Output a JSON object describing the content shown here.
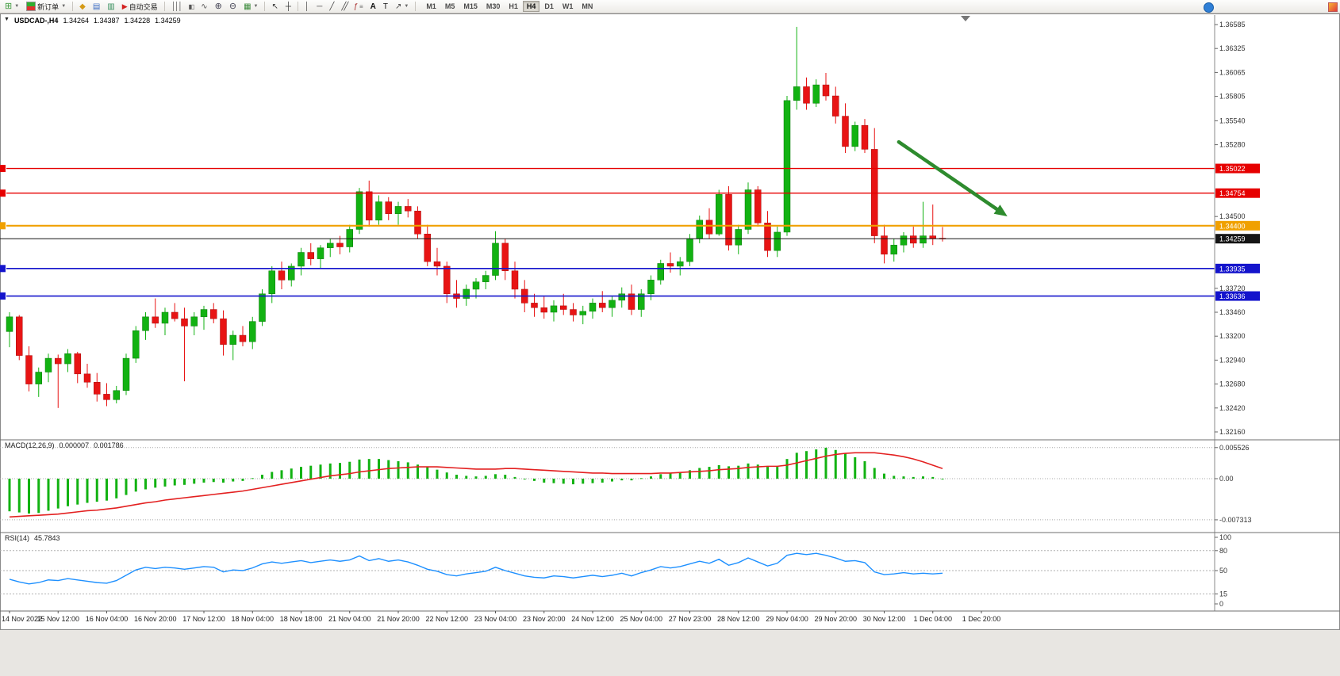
{
  "toolbar": {
    "new_order_label": "新订单",
    "auto_trading_label": "自动交易",
    "timeframes": [
      "M1",
      "M5",
      "M15",
      "M30",
      "H1",
      "H4",
      "D1",
      "W1",
      "MN"
    ],
    "active_timeframe": "H4"
  },
  "chart_header": {
    "symbol_tf": "USDCAD-,H4",
    "open": "1.34264",
    "high": "1.34387",
    "low": "1.34228",
    "close": "1.34259"
  },
  "chart_data": [
    {
      "type": "candlestick",
      "title": "USDCAD- H4",
      "colors": {
        "bull": "#12b212",
        "bear": "#e81414"
      },
      "y_ticks": [
        {
          "label": "1.36585",
          "value": 1.36585
        },
        {
          "label": "1.36325",
          "value": 1.36325
        },
        {
          "label": "1.36065",
          "value": 1.36065
        },
        {
          "label": "1.35805",
          "value": 1.35805
        },
        {
          "label": "1.35540",
          "value": 1.3554
        },
        {
          "label": "1.35280",
          "value": 1.3528
        },
        {
          "label": "1.34500",
          "value": 1.345
        },
        {
          "label": "1.33720",
          "value": 1.3372
        },
        {
          "label": "1.33460",
          "value": 1.3346
        },
        {
          "label": "1.33200",
          "value": 1.332
        },
        {
          "label": "1.32940",
          "value": 1.3294
        },
        {
          "label": "1.32680",
          "value": 1.3268
        },
        {
          "label": "1.32420",
          "value": 1.3242
        },
        {
          "label": "1.32160",
          "value": 1.3216
        }
      ],
      "hlines": [
        {
          "label": "1.35022",
          "price": 1.35022,
          "color": "#e60000",
          "width": 1.4
        },
        {
          "label": "1.34754",
          "price": 1.34754,
          "color": "#e60000",
          "width": 1.4
        },
        {
          "label": "1.34400",
          "price": 1.344,
          "color": "#f0a000",
          "width": 2.2
        },
        {
          "label": "1.33935",
          "price": 1.33935,
          "color": "#1414cc",
          "width": 1.6
        },
        {
          "label": "1.33636",
          "price": 1.33636,
          "color": "#1414cc",
          "width": 1.6
        }
      ],
      "current_price": {
        "label": "1.34259",
        "value": 1.34259,
        "color": "#151515"
      },
      "annotations": [
        {
          "type": "arrow",
          "from": {
            "index": 91.5,
            "price": 1.3531
          },
          "to": {
            "index": 102,
            "price": 1.3455
          },
          "color": "#2e8b2e",
          "width": 4.5
        }
      ],
      "x_labels": [
        "14 Nov 2022",
        "15 Nov 12:00",
        "16 Nov 04:00",
        "16 Nov 20:00",
        "17 Nov 12:00",
        "18 Nov 04:00",
        "18 Nov 18:00",
        "21 Nov 04:00",
        "21 Nov 20:00",
        "22 Nov 12:00",
        "23 Nov 04:00",
        "23 Nov 20:00",
        "24 Nov 12:00",
        "25 Nov 04:00",
        "27 Nov 23:00",
        "28 Nov 12:00",
        "29 Nov 04:00",
        "29 Nov 20:00",
        "30 Nov 12:00",
        "1 Dec 04:00",
        "1 Dec 20:00"
      ],
      "candles": [
        [
          1.3325,
          1.3346,
          1.3308,
          1.3341
        ],
        [
          1.3341,
          1.3343,
          1.3294,
          1.3299
        ],
        [
          1.3299,
          1.3309,
          1.326,
          1.3268
        ],
        [
          1.3268,
          1.3286,
          1.3254,
          1.3281
        ],
        [
          1.3281,
          1.3301,
          1.327,
          1.3296
        ],
        [
          1.3296,
          1.33,
          1.3242,
          1.329
        ],
        [
          1.329,
          1.3306,
          1.3281,
          1.3301
        ],
        [
          1.3301,
          1.3303,
          1.3269,
          1.3279
        ],
        [
          1.3279,
          1.329,
          1.3264,
          1.327
        ],
        [
          1.327,
          1.328,
          1.3249,
          1.3257
        ],
        [
          1.3257,
          1.3269,
          1.3244,
          1.3251
        ],
        [
          1.3251,
          1.3266,
          1.3247,
          1.3261
        ],
        [
          1.3261,
          1.3301,
          1.3256,
          1.3296
        ],
        [
          1.3296,
          1.3331,
          1.3291,
          1.3326
        ],
        [
          1.3326,
          1.3346,
          1.3316,
          1.3341
        ],
        [
          1.3341,
          1.3361,
          1.3329,
          1.3334
        ],
        [
          1.3334,
          1.3351,
          1.3321,
          1.3346
        ],
        [
          1.3346,
          1.3356,
          1.3336,
          1.3339
        ],
        [
          1.3339,
          1.3351,
          1.3271,
          1.3331
        ],
        [
          1.3331,
          1.3346,
          1.3321,
          1.3341
        ],
        [
          1.3341,
          1.3353,
          1.3327,
          1.3349
        ],
        [
          1.3349,
          1.3356,
          1.3334,
          1.3339
        ],
        [
          1.3339,
          1.3348,
          1.3299,
          1.3311
        ],
        [
          1.3311,
          1.3326,
          1.3294,
          1.3321
        ],
        [
          1.3321,
          1.3331,
          1.3309,
          1.3314
        ],
        [
          1.3314,
          1.3341,
          1.3306,
          1.3336
        ],
        [
          1.3336,
          1.3371,
          1.3331,
          1.3366
        ],
        [
          1.3366,
          1.3396,
          1.3356,
          1.3391
        ],
        [
          1.3391,
          1.3401,
          1.3371,
          1.3381
        ],
        [
          1.3381,
          1.3399,
          1.3374,
          1.3396
        ],
        [
          1.3396,
          1.3416,
          1.3386,
          1.3411
        ],
        [
          1.3411,
          1.3421,
          1.3397,
          1.3404
        ],
        [
          1.3404,
          1.3419,
          1.3394,
          1.3416
        ],
        [
          1.3416,
          1.3426,
          1.3406,
          1.3421
        ],
        [
          1.3421,
          1.3429,
          1.3409,
          1.3417
        ],
        [
          1.3417,
          1.3441,
          1.3411,
          1.3436
        ],
        [
          1.3436,
          1.3481,
          1.3431,
          1.3477
        ],
        [
          1.3477,
          1.3489,
          1.3439,
          1.3446
        ],
        [
          1.3446,
          1.3473,
          1.3441,
          1.3466
        ],
        [
          1.3466,
          1.3471,
          1.3446,
          1.3453
        ],
        [
          1.3453,
          1.3466,
          1.3441,
          1.3461
        ],
        [
          1.3461,
          1.3469,
          1.3449,
          1.3456
        ],
        [
          1.3456,
          1.3461,
          1.3426,
          1.3431
        ],
        [
          1.3431,
          1.3441,
          1.3396,
          1.3401
        ],
        [
          1.3401,
          1.3416,
          1.3386,
          1.3396
        ],
        [
          1.3396,
          1.3401,
          1.3356,
          1.3366
        ],
        [
          1.3366,
          1.3381,
          1.3351,
          1.3361
        ],
        [
          1.3361,
          1.3376,
          1.3353,
          1.3371
        ],
        [
          1.3371,
          1.3383,
          1.3361,
          1.3379
        ],
        [
          1.3379,
          1.3391,
          1.3371,
          1.3386
        ],
        [
          1.3386,
          1.3434,
          1.3381,
          1.3421
        ],
        [
          1.3421,
          1.3426,
          1.3381,
          1.3391
        ],
        [
          1.3391,
          1.3401,
          1.3361,
          1.3371
        ],
        [
          1.3371,
          1.3381,
          1.3346,
          1.3356
        ],
        [
          1.3356,
          1.3366,
          1.3341,
          1.3351
        ],
        [
          1.3351,
          1.3363,
          1.3339,
          1.3346
        ],
        [
          1.3346,
          1.3359,
          1.3336,
          1.3353
        ],
        [
          1.3353,
          1.3366,
          1.3343,
          1.3349
        ],
        [
          1.3349,
          1.3356,
          1.3336,
          1.3343
        ],
        [
          1.3343,
          1.3353,
          1.3333,
          1.3347
        ],
        [
          1.3347,
          1.3361,
          1.3339,
          1.3356
        ],
        [
          1.3356,
          1.3369,
          1.3346,
          1.3351
        ],
        [
          1.3351,
          1.3363,
          1.3341,
          1.3359
        ],
        [
          1.3359,
          1.3373,
          1.3351,
          1.3366
        ],
        [
          1.3366,
          1.3376,
          1.3343,
          1.3349
        ],
        [
          1.3349,
          1.3371,
          1.3341,
          1.3366
        ],
        [
          1.3366,
          1.3386,
          1.3359,
          1.3381
        ],
        [
          1.3381,
          1.3403,
          1.3376,
          1.3399
        ],
        [
          1.3399,
          1.3411,
          1.3389,
          1.3396
        ],
        [
          1.3396,
          1.3406,
          1.3386,
          1.3401
        ],
        [
          1.3401,
          1.3431,
          1.3396,
          1.3426
        ],
        [
          1.3426,
          1.3451,
          1.3421,
          1.3446
        ],
        [
          1.3446,
          1.3459,
          1.3426,
          1.3431
        ],
        [
          1.3431,
          1.3479,
          1.3429,
          1.3474
        ],
        [
          1.3474,
          1.3483,
          1.3413,
          1.3419
        ],
        [
          1.3419,
          1.3441,
          1.3409,
          1.3436
        ],
        [
          1.3436,
          1.3487,
          1.3431,
          1.3479
        ],
        [
          1.3479,
          1.3483,
          1.3439,
          1.3443
        ],
        [
          1.3443,
          1.3456,
          1.3406,
          1.3413
        ],
        [
          1.3413,
          1.3439,
          1.3406,
          1.3433
        ],
        [
          1.3433,
          1.3581,
          1.3429,
          1.3576
        ],
        [
          1.3576,
          1.3656,
          1.3566,
          1.3591
        ],
        [
          1.3591,
          1.3601,
          1.3566,
          1.3573
        ],
        [
          1.3573,
          1.3599,
          1.3569,
          1.3593
        ],
        [
          1.3593,
          1.3606,
          1.3576,
          1.3581
        ],
        [
          1.3581,
          1.3591,
          1.3551,
          1.3559
        ],
        [
          1.3559,
          1.3573,
          1.3519,
          1.3526
        ],
        [
          1.3526,
          1.3553,
          1.3521,
          1.3549
        ],
        [
          1.3549,
          1.3556,
          1.3519,
          1.3523
        ],
        [
          1.3523,
          1.3546,
          1.3421,
          1.3429
        ],
        [
          1.3429,
          1.3441,
          1.3399,
          1.3409
        ],
        [
          1.3409,
          1.3426,
          1.3401,
          1.3419
        ],
        [
          1.3419,
          1.3433,
          1.3411,
          1.3429
        ],
        [
          1.3429,
          1.3439,
          1.3416,
          1.3421
        ],
        [
          1.3421,
          1.3466,
          1.3416,
          1.3429
        ],
        [
          1.3429,
          1.3463,
          1.3419,
          1.3426
        ],
        [
          1.34264,
          1.34387,
          1.34228,
          1.34259
        ]
      ]
    },
    {
      "type": "bar",
      "name": "MACD(12,26,9)",
      "value_main": "0.000007",
      "value_signal": "0.001786",
      "bar_color": "#12b212",
      "signal_color": "#e32020",
      "y_ticks": [
        {
          "label": "0.005526",
          "value": 0.005526
        },
        {
          "label": "0.00",
          "value": 0
        },
        {
          "label": "-0.007313",
          "value": -0.007313
        }
      ],
      "histogram": [
        -0.0058,
        -0.006,
        -0.0062,
        -0.0061,
        -0.0057,
        -0.0053,
        -0.0049,
        -0.0046,
        -0.0043,
        -0.0041,
        -0.0039,
        -0.0035,
        -0.0029,
        -0.0023,
        -0.0019,
        -0.0016,
        -0.0014,
        -0.0012,
        -0.0011,
        -0.0009,
        -0.0007,
        -0.0006,
        -0.0007,
        -0.0005,
        -0.0004,
        0.0001,
        0.0007,
        0.0012,
        0.0015,
        0.0018,
        0.0021,
        0.0023,
        0.0025,
        0.0027,
        0.0028,
        0.003,
        0.0034,
        0.0035,
        0.0035,
        0.0033,
        0.0031,
        0.0029,
        0.0025,
        0.0021,
        0.0016,
        0.0011,
        0.0007,
        0.0005,
        0.0004,
        0.0005,
        0.0008,
        0.0007,
        0.0003,
        -0.0001,
        -0.0004,
        -0.0007,
        -0.0008,
        -0.0009,
        -0.001,
        -0.0009,
        -0.0008,
        -0.0007,
        -0.0005,
        -0.0003,
        -0.0003,
        0.0001,
        0.0004,
        0.0008,
        0.001,
        0.0012,
        0.0015,
        0.0019,
        0.0021,
        0.0024,
        0.0022,
        0.0023,
        0.0027,
        0.0025,
        0.0021,
        0.0021,
        0.0035,
        0.0046,
        0.0049,
        0.0052,
        0.0055,
        0.0051,
        0.0045,
        0.0038,
        0.0031,
        0.0019,
        0.0009,
        0.0005,
        0.0004,
        0.0003,
        0.0004,
        0.0003,
        0.0
      ],
      "signal": [
        -0.0068,
        -0.0067,
        -0.0066,
        -0.0065,
        -0.0064,
        -0.0063,
        -0.0061,
        -0.0059,
        -0.0057,
        -0.0056,
        -0.0054,
        -0.0052,
        -0.0049,
        -0.0046,
        -0.0043,
        -0.0041,
        -0.0038,
        -0.0036,
        -0.0034,
        -0.0032,
        -0.003,
        -0.0028,
        -0.0026,
        -0.0024,
        -0.0022,
        -0.0019,
        -0.0016,
        -0.0013,
        -0.001,
        -0.0007,
        -0.0004,
        -0.0001,
        0.0002,
        0.0005,
        0.0007,
        0.0009,
        0.0012,
        0.0014,
        0.0016,
        0.0018,
        0.0019,
        0.002,
        0.0021,
        0.0021,
        0.0021,
        0.002,
        0.0019,
        0.0018,
        0.0017,
        0.0017,
        0.0017,
        0.0018,
        0.0018,
        0.0017,
        0.0016,
        0.0015,
        0.0014,
        0.0013,
        0.0012,
        0.0011,
        0.001,
        0.001,
        0.0009,
        0.0009,
        0.0009,
        0.0009,
        0.0009,
        0.001,
        0.001,
        0.0011,
        0.0012,
        0.0013,
        0.0014,
        0.0016,
        0.0017,
        0.0018,
        0.002,
        0.0021,
        0.0022,
        0.0022,
        0.0024,
        0.0028,
        0.0032,
        0.0036,
        0.004,
        0.0043,
        0.0045,
        0.0046,
        0.0046,
        0.0046,
        0.0044,
        0.0042,
        0.0039,
        0.0035,
        0.003,
        0.0024,
        0.0018
      ]
    },
    {
      "type": "line",
      "name": "RSI(14)",
      "value": "45.7843",
      "line_color": "#1E90FF",
      "levels": [
        {
          "label": "100",
          "value": 100,
          "dashed": false
        },
        {
          "label": "80",
          "value": 80,
          "dashed": true
        },
        {
          "label": "50",
          "value": 50,
          "dashed": true
        },
        {
          "label": "15",
          "value": 15,
          "dashed": true
        },
        {
          "label": "0",
          "value": 0,
          "dashed": false
        }
      ],
      "values": [
        37,
        33,
        30,
        32,
        36,
        35,
        38,
        36,
        34,
        32,
        31,
        35,
        43,
        51,
        55,
        53,
        55,
        54,
        52,
        54,
        56,
        55,
        48,
        51,
        50,
        54,
        60,
        63,
        61,
        63,
        65,
        62,
        64,
        66,
        64,
        66,
        72,
        65,
        68,
        64,
        66,
        63,
        58,
        52,
        49,
        44,
        42,
        45,
        47,
        49,
        55,
        50,
        46,
        42,
        40,
        39,
        42,
        41,
        39,
        41,
        43,
        41,
        43,
        46,
        42,
        47,
        51,
        56,
        54,
        56,
        60,
        64,
        61,
        67,
        58,
        62,
        69,
        63,
        57,
        61,
        73,
        76,
        74,
        76,
        73,
        69,
        64,
        65,
        62,
        48,
        44,
        45,
        47,
        45,
        46,
        45,
        46
      ]
    }
  ]
}
